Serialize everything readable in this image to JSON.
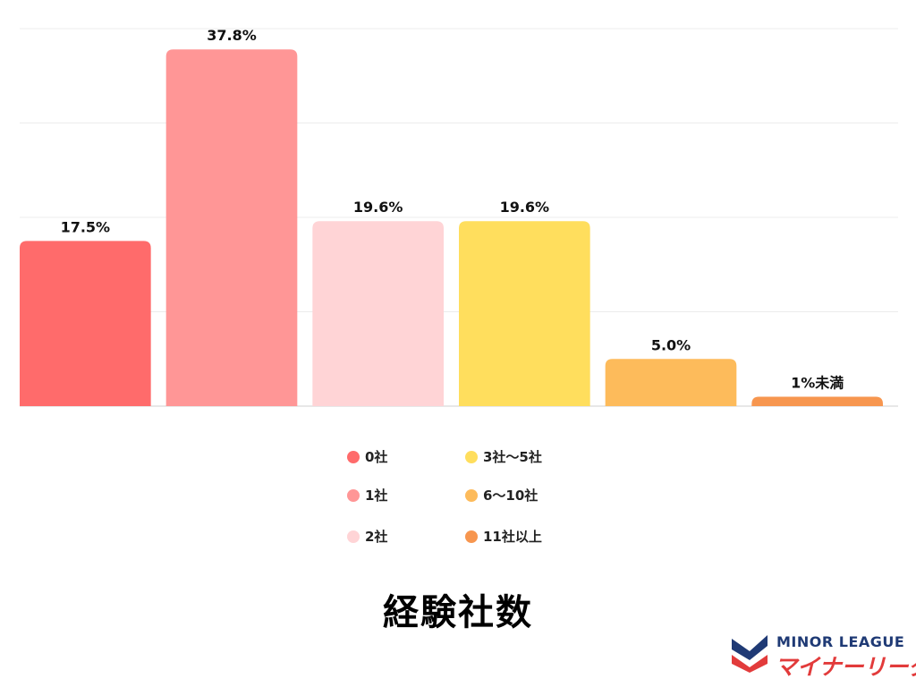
{
  "chart_data": {
    "type": "bar",
    "title": "経験社数",
    "categories": [
      "0社",
      "1社",
      "2社",
      "3社〜5社",
      "6〜10社",
      "11社以上"
    ],
    "values": [
      17.5,
      37.8,
      19.6,
      19.6,
      5.0,
      1.0
    ],
    "value_labels": [
      "17.5%",
      "37.8%",
      "19.6%",
      "19.6%",
      "5.0%",
      "1%未満"
    ],
    "colors": [
      "#ff6b6b",
      "#ff9696",
      "#ffd4d6",
      "#ffde5d",
      "#fdbb5b",
      "#f7964f"
    ],
    "ylim": [
      0,
      40
    ],
    "grid": true,
    "legend_position": "bottom"
  },
  "logo": {
    "en": "MINOR LEAGUE",
    "jp": "マイナーリーグ"
  }
}
